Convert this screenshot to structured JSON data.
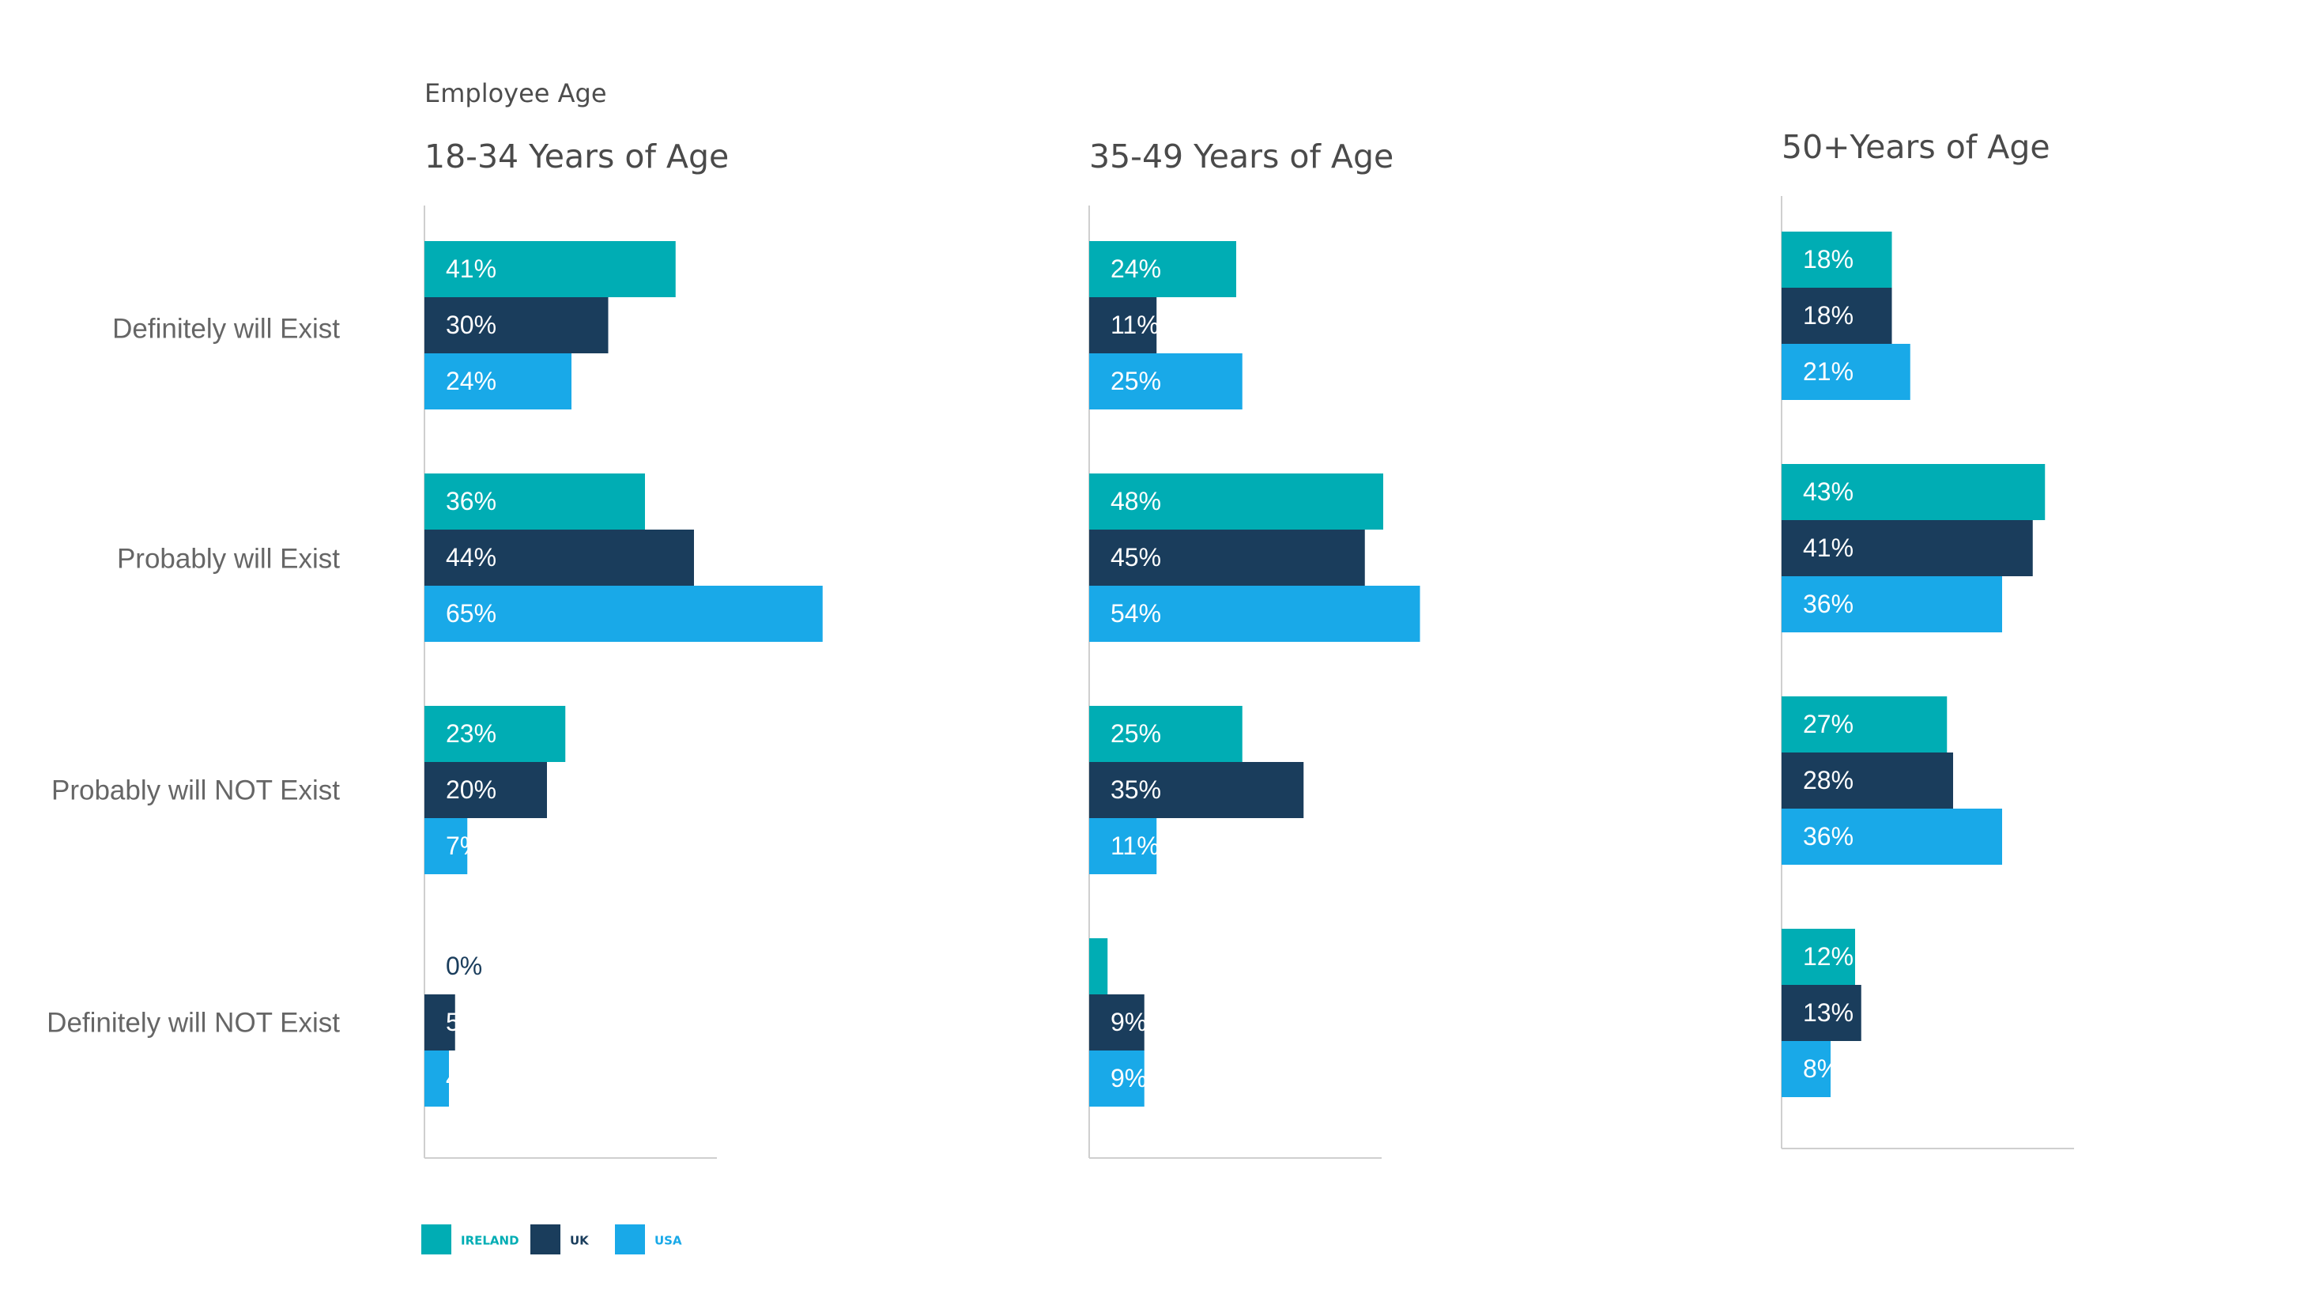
{
  "chart_data": {
    "type": "bar",
    "orientation": "horizontal",
    "supertitle": "Employee Age",
    "categories": [
      "Definitely will Exist",
      "Probably will Exist",
      "Probably will NOT Exist",
      "Definitely will NOT Exist"
    ],
    "series_names": [
      "IRELAND",
      "UK",
      "USA"
    ],
    "colors": {
      "IRELAND": "#00adb4",
      "UK": "#1a3d5c",
      "USA": "#19a9e8"
    },
    "charts": [
      {
        "title": "18-34 Years of Age",
        "series": [
          {
            "name": "IRELAND",
            "values": [
              41,
              36,
              23,
              0
            ]
          },
          {
            "name": "UK",
            "values": [
              30,
              44,
              20,
              5
            ]
          },
          {
            "name": "USA",
            "values": [
              24,
              65,
              7,
              4
            ]
          }
        ]
      },
      {
        "title": "35-49 Years of Age",
        "series": [
          {
            "name": "IRELAND",
            "values": [
              24,
              48,
              25,
              3
            ]
          },
          {
            "name": "UK",
            "values": [
              11,
              45,
              35,
              9
            ]
          },
          {
            "name": "USA",
            "values": [
              25,
              54,
              11,
              9
            ]
          }
        ]
      },
      {
        "title": "50+Years of Age",
        "series": [
          {
            "name": "IRELAND",
            "values": [
              18,
              43,
              27,
              12
            ]
          },
          {
            "name": "UK",
            "values": [
              18,
              41,
              28,
              13
            ]
          },
          {
            "name": "USA",
            "values": [
              21,
              36,
              36,
              8
            ]
          }
        ]
      }
    ],
    "value_suffix": "%",
    "legend": [
      "IRELAND",
      "UK",
      "USA"
    ],
    "legend_position": "bottom-left",
    "grid": false
  }
}
